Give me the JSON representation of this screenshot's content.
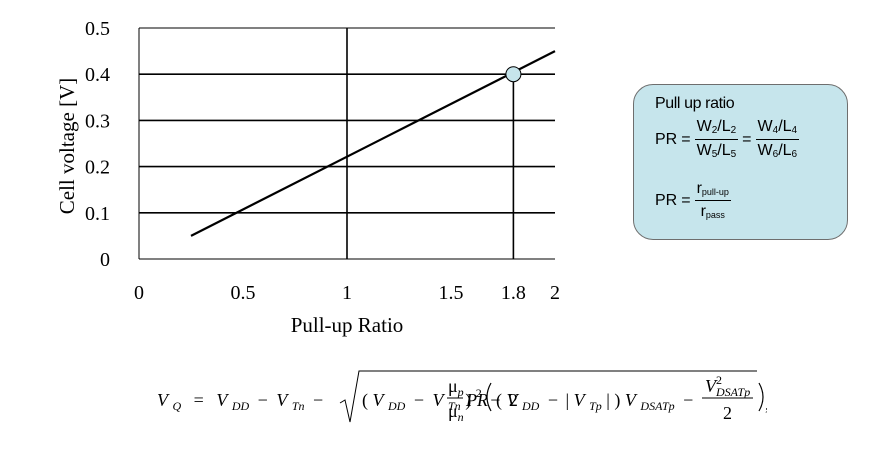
{
  "chart_data": {
    "type": "line",
    "xlabel": "Pull-up Ratio",
    "ylabel": "Cell voltage [V]",
    "xlim": [
      0,
      2
    ],
    "ylim": [
      0,
      0.5
    ],
    "x_ticks": [
      "0",
      "0.5",
      "1",
      "1.5",
      "1.8",
      "2"
    ],
    "x_tick_values": [
      0,
      0.5,
      1,
      1.5,
      1.8,
      2
    ],
    "y_ticks": [
      "0",
      "0.1",
      "0.2",
      "0.3",
      "0.4",
      "0.5"
    ],
    "y_tick_values": [
      0,
      0.1,
      0.2,
      0.3,
      0.4,
      0.5
    ],
    "grid": true,
    "series": [
      {
        "x": [
          0.25,
          2.0
        ],
        "y": [
          0.05,
          0.45
        ],
        "color": "#000000"
      }
    ],
    "highlight_point": {
      "x": 1.8,
      "y": 0.4,
      "color": "#c6e5ec"
    }
  },
  "info_box": {
    "title": "Pull up ratio",
    "pr": "PR",
    "eq": "=",
    "w2": "W",
    "w2_sub": "2",
    "l2": "L",
    "l2_sub": "2",
    "w5": "W",
    "w5_sub": "5",
    "l5": "L",
    "l5_sub": "5",
    "w4": "W",
    "w4_sub": "4",
    "l4": "L",
    "l4_sub": "4",
    "w6": "W",
    "w6_sub": "6",
    "l6": "L",
    "l6_sub": "6",
    "slash": "/",
    "r": "r",
    "pullup_sub": "pull-up",
    "pass_sub": "pass",
    "background": "#c6e5ec"
  },
  "formula": {
    "vq": "V",
    "q_sub": "Q",
    "equals": "=",
    "vdd": "V",
    "dd_sub": "DD",
    "minus": "−",
    "vtn": "V",
    "tn_sub": "Tn",
    "lparen": "(",
    "rparen": ")",
    "sq": "2",
    "two": "2",
    "mu": "μ",
    "p_sub": "p",
    "n_sub": "n",
    "pr": "PR",
    "bar": "|",
    "vtp": "V",
    "tp_sub": "Tp",
    "vdsat": "V",
    "dsat_sub": "DSATp",
    "comma": ","
  }
}
